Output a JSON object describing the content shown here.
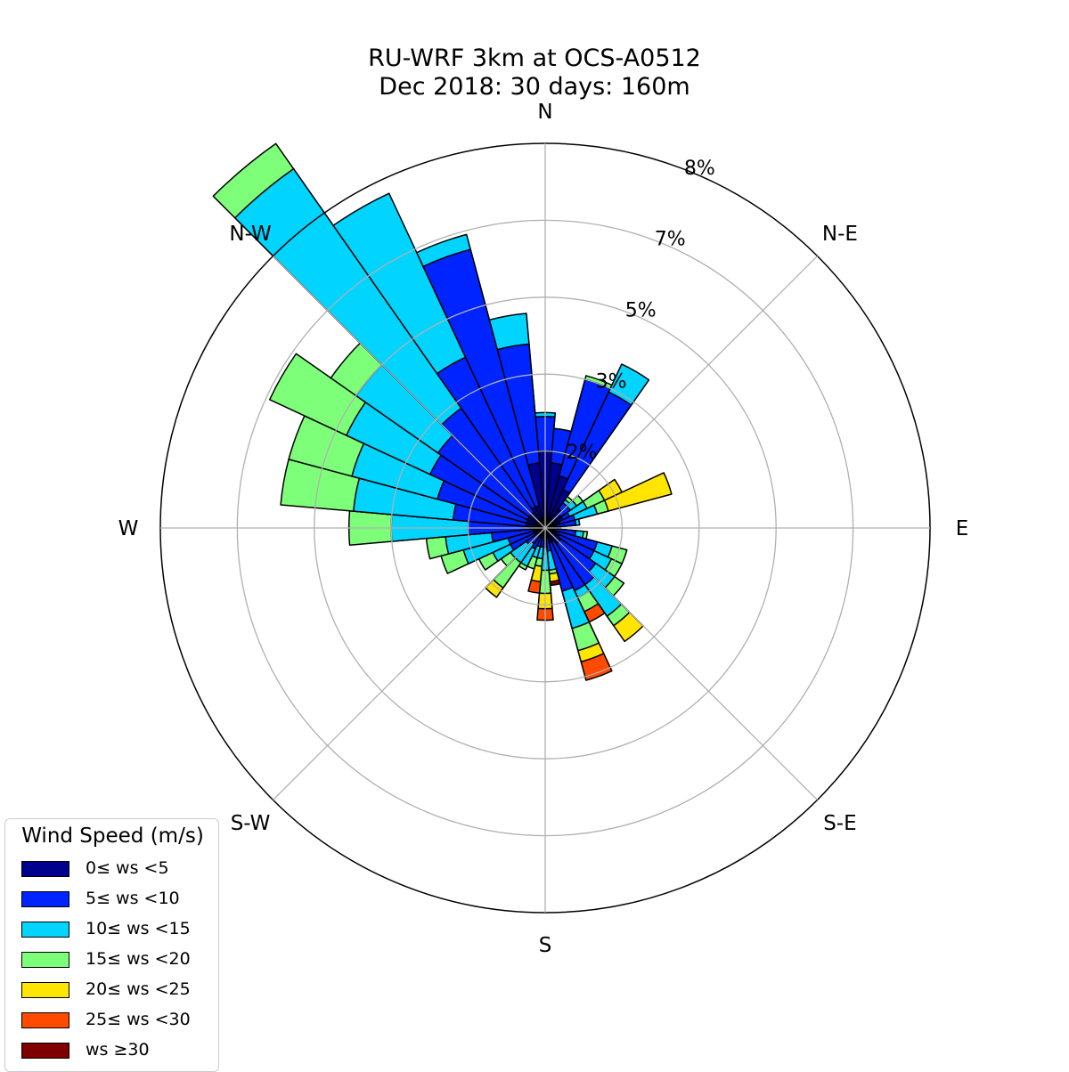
{
  "title_line1": "RU-WRF 3km at OCS-A0512",
  "title_line2": "Dec 2018: 30 days: 160m",
  "chart_data": {
    "type": "windrose",
    "title": "RU-WRF 3km at OCS-A0512 / Dec 2018: 30 days: 160m",
    "directions": [
      "N",
      "N-E",
      "E",
      "S-E",
      "S",
      "S-W",
      "W",
      "N-W"
    ],
    "radial_tick_labels": [
      "2%",
      "3%",
      "5%",
      "7%",
      "8%"
    ],
    "radial_ticks": [
      1,
      2,
      3,
      4,
      5
    ],
    "legend_title": "Wind Speed (m/s)",
    "legend_placement": "bottom-left",
    "grid": true,
    "speed_bins": [
      {
        "label": "0≤ ws <5",
        "color": "#00008f"
      },
      {
        "label": "5≤ ws <10",
        "color": "#0024ff"
      },
      {
        "label": "10≤ ws <15",
        "color": "#00d4ff"
      },
      {
        "label": "15≤ ws <20",
        "color": "#7dff7a"
      },
      {
        "label": "20≤ ws <25",
        "color": "#ffe500"
      },
      {
        "label": "25≤ ws <30",
        "color": "#ff4a00"
      },
      {
        "label": "ws ≥30",
        "color": "#800000"
      }
    ],
    "sector_width_deg": 10,
    "sectors": [
      {
        "dir": 0,
        "cum": [
          1.0,
          1.45,
          1.5,
          1.5,
          1.5,
          1.5,
          1.5
        ]
      },
      {
        "dir": 10,
        "cum": [
          0.85,
          1.3,
          1.3,
          1.3,
          1.3,
          1.3,
          1.3
        ]
      },
      {
        "dir": 20,
        "cum": [
          0.7,
          2.0,
          2.0,
          2.05,
          2.05,
          2.05,
          2.05
        ]
      },
      {
        "dir": 30,
        "cum": [
          0.55,
          1.95,
          2.35,
          2.35,
          2.35,
          2.35,
          2.35
        ]
      },
      {
        "dir": 40,
        "cum": [
          0.3,
          0.4,
          0.45,
          0.5,
          0.5,
          0.5,
          0.5
        ]
      },
      {
        "dir": 50,
        "cum": [
          0.25,
          0.4,
          0.5,
          0.6,
          0.6,
          0.6,
          0.6
        ]
      },
      {
        "dir": 60,
        "cum": [
          0.25,
          0.35,
          0.6,
          0.85,
          1.1,
          1.1,
          1.1
        ]
      },
      {
        "dir": 70,
        "cum": [
          0.2,
          0.4,
          0.7,
          0.85,
          1.7,
          1.7,
          1.7
        ]
      },
      {
        "dir": 80,
        "cum": [
          0.15,
          0.4,
          0.45,
          0.45,
          0.45,
          0.45,
          0.45
        ]
      },
      {
        "dir": 90,
        "cum": [
          0.12,
          0.2,
          0.2,
          0.2,
          0.2,
          0.2,
          0.2
        ]
      },
      {
        "dir": 100,
        "cum": [
          0.12,
          0.4,
          0.5,
          0.55,
          0.55,
          0.55,
          0.55
        ]
      },
      {
        "dir": 110,
        "cum": [
          0.15,
          0.7,
          0.9,
          1.1,
          1.1,
          1.1,
          1.1
        ]
      },
      {
        "dir": 120,
        "cum": [
          0.2,
          0.7,
          0.95,
          1.1,
          1.1,
          1.1,
          1.1
        ]
      },
      {
        "dir": 130,
        "cum": [
          0.25,
          0.8,
          1.1,
          1.25,
          1.25,
          1.25,
          1.25
        ]
      },
      {
        "dir": 140,
        "cum": [
          0.25,
          0.9,
          1.4,
          1.55,
          1.8,
          1.8,
          1.8
        ]
      },
      {
        "dir": 150,
        "cum": [
          0.2,
          0.9,
          1.0,
          1.2,
          1.2,
          1.35,
          1.35
        ]
      },
      {
        "dir": 160,
        "cum": [
          0.2,
          0.85,
          1.35,
          1.65,
          1.8,
          2.05,
          2.05
        ]
      },
      {
        "dir": 170,
        "cum": [
          0.15,
          0.3,
          0.55,
          0.6,
          0.7,
          0.7,
          0.75
        ]
      },
      {
        "dir": 180,
        "cum": [
          0.1,
          0.25,
          0.55,
          0.85,
          1.05,
          1.2,
          1.2
        ]
      },
      {
        "dir": 190,
        "cum": [
          0.1,
          0.25,
          0.4,
          0.5,
          0.7,
          0.85,
          0.85
        ]
      },
      {
        "dir": 200,
        "cum": [
          0.1,
          0.25,
          0.4,
          0.55,
          0.55,
          0.55,
          0.55
        ]
      },
      {
        "dir": 210,
        "cum": [
          0.1,
          0.3,
          0.55,
          0.6,
          0.6,
          0.6,
          0.6
        ]
      },
      {
        "dir": 220,
        "cum": [
          0.1,
          0.25,
          0.55,
          0.95,
          1.1,
          1.1,
          1.1
        ]
      },
      {
        "dir": 230,
        "cum": [
          0.1,
          0.3,
          0.55,
          0.7,
          0.7,
          0.7,
          0.7
        ]
      },
      {
        "dir": 240,
        "cum": [
          0.15,
          0.5,
          0.75,
          0.95,
          0.95,
          0.95,
          0.95
        ]
      },
      {
        "dir": 250,
        "cum": [
          0.15,
          0.5,
          1.1,
          1.4,
          1.4,
          1.4,
          1.4
        ]
      },
      {
        "dir": 260,
        "cum": [
          0.15,
          0.7,
          1.3,
          1.55,
          1.55,
          1.55,
          1.55
        ]
      },
      {
        "dir": 270,
        "cum": [
          0.2,
          1.0,
          2.0,
          2.55,
          2.55,
          2.55,
          2.55
        ]
      },
      {
        "dir": 280,
        "cum": [
          0.25,
          1.2,
          2.5,
          3.45,
          3.45,
          3.45,
          3.45
        ]
      },
      {
        "dir": 290,
        "cum": [
          0.25,
          1.45,
          2.6,
          3.45,
          3.45,
          3.45,
          3.45
        ]
      },
      {
        "dir": 300,
        "cum": [
          0.25,
          1.65,
          2.85,
          3.95,
          3.95,
          3.95,
          3.95
        ]
      },
      {
        "dir": 310,
        "cum": [
          0.25,
          1.7,
          3.0,
          3.4,
          3.4,
          3.4,
          3.4
        ]
      },
      {
        "dir": 320,
        "cum": [
          0.25,
          1.9,
          5.7,
          6.1,
          6.1,
          6.1,
          6.1
        ]
      },
      {
        "dir": 330,
        "cum": [
          0.3,
          2.45,
          4.8,
          4.8,
          4.8,
          4.8,
          4.8
        ]
      },
      {
        "dir": 340,
        "cum": [
          0.3,
          3.75,
          3.95,
          3.95,
          3.95,
          3.95,
          3.95
        ]
      },
      {
        "dir": 350,
        "cum": [
          0.85,
          2.4,
          2.8,
          2.8,
          2.8,
          2.8,
          2.8
        ]
      }
    ]
  }
}
